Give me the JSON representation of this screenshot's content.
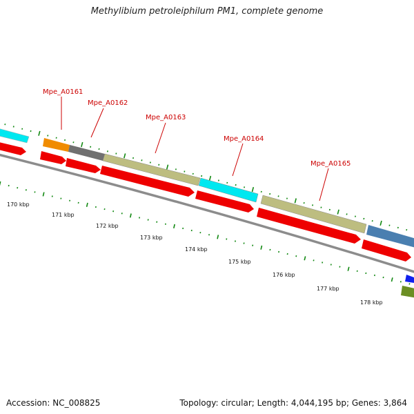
{
  "title": "Methylibium petroleiphilum PM1, complete genome",
  "footer": {
    "accession": "Accession: NC_008825",
    "summary": "Topology: circular; Length: 4,044,195 bp; Genes: 3,864"
  },
  "colors": {
    "backbone": "#8c8c8c",
    "cds_strand": "#ee0000",
    "gc_ticks": "#118811",
    "gene_label": "#cc0000",
    "cog_cyan": "#00e8f0",
    "cog_orange": "#f08c00",
    "cog_gray": "#707070",
    "cog_khaki": "#bdbd80",
    "cog_steelblue": "#4a7fb0",
    "cog_blue": "#1020ee",
    "cog_olive": "#6b8e23"
  },
  "scale_labels": [
    "170 kbp",
    "171 kbp",
    "172 kbp",
    "173 kbp",
    "174 kbp",
    "175 kbp",
    "176 kbp",
    "177 kbp",
    "178 kbp"
  ],
  "gene_labels": [
    "Mpe_A0161",
    "Mpe_A0162",
    "Mpe_A0163",
    "Mpe_A0164",
    "Mpe_A0165"
  ]
}
